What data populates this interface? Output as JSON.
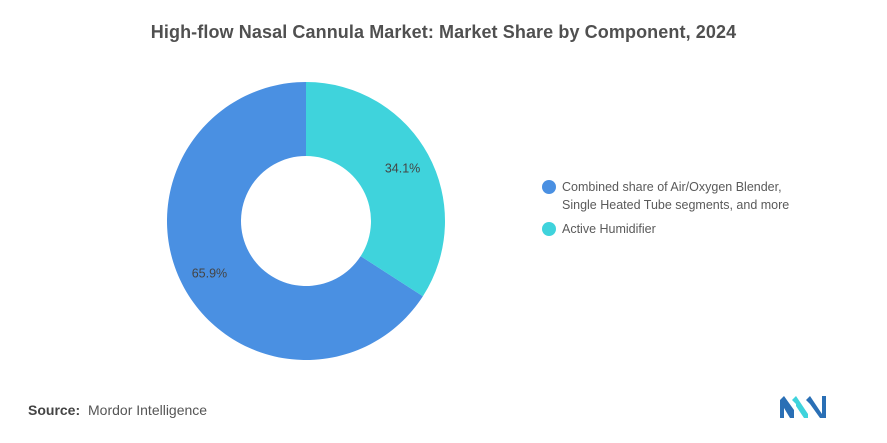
{
  "chart_data": {
    "type": "pie",
    "donut": true,
    "title": "High-flow Nasal Cannula Market: Market Share by Component, 2024",
    "slices": [
      {
        "label": "Combined share of Air/Oxygen Blender, Single Heated Tube segments, and more",
        "value": 65.9,
        "value_label": "65.9%",
        "color": "#4a90e2"
      },
      {
        "label": "Active Humidifier",
        "value": 34.1,
        "value_label": "34.1%",
        "color": "#3fd3dc"
      }
    ],
    "legend_position": "right"
  },
  "legend": {
    "line1": "Combined share of Air/Oxygen Blender,",
    "line2": "Single Heated Tube segments, and more",
    "item2": "Active Humidifier"
  },
  "source": {
    "label": "Source:",
    "text": "Mordor Intelligence"
  },
  "logo": {
    "name": "mordor-intelligence-logo",
    "colors": [
      "#2a6fb5",
      "#3fd3dc"
    ]
  }
}
